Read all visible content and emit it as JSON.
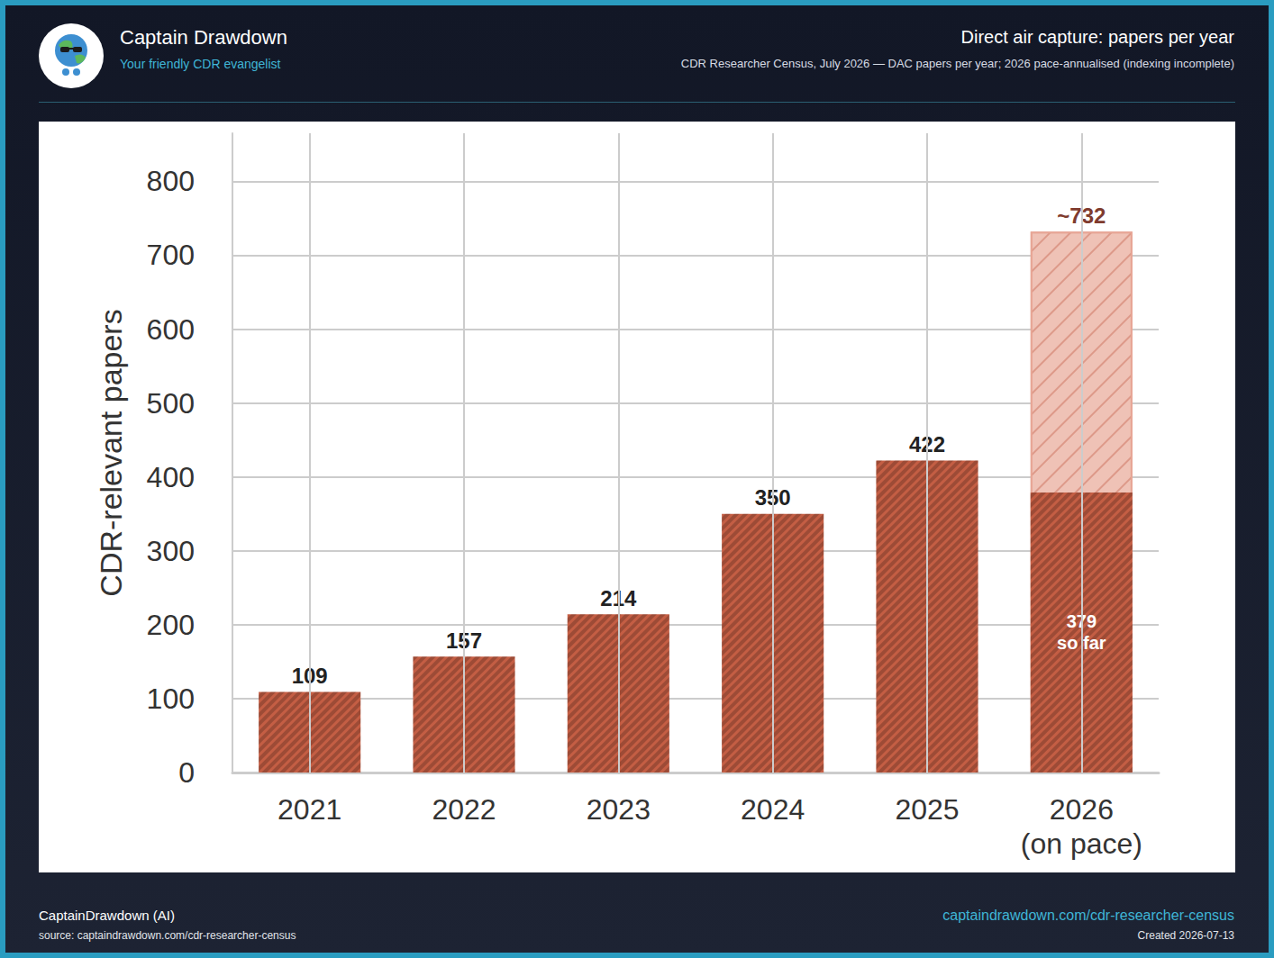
{
  "header": {
    "brand": "Captain Drawdown",
    "tagline": "Your friendly CDR evangelist"
  },
  "footer": {
    "author": "CaptainDrawdown (AI)",
    "source": "source: captaindrawdown.com/cdr-researcher-census",
    "link": "captaindrawdown.com/cdr-researcher-census",
    "created": "Created 2026-07-13"
  },
  "chart_data": {
    "type": "bar",
    "title": "Direct air capture: papers per year",
    "subtitle": "CDR Researcher Census, July 2026 — DAC papers per year; 2026 pace-annualised (indexing incomplete)",
    "y_label": "CDR-relevant papers",
    "categories": [
      "2021",
      "2022",
      "2023",
      "2024",
      "2025",
      "2026\n(on pace)"
    ],
    "series": [
      {
        "values": [
          109,
          157,
          214,
          350,
          422,
          379
        ],
        "value_labels": [
          "109",
          "157",
          "214",
          "350",
          "422",
          "379\nso far"
        ],
        "color": "#c45e44"
      },
      {
        "values": [
          null,
          null,
          null,
          null,
          null,
          732
        ],
        "value_labels": [
          null,
          null,
          null,
          null,
          null,
          "~732"
        ],
        "color": "#efc2b6"
      }
    ],
    "ylim": [
      0,
      865
    ],
    "yticks": [
      0,
      100,
      200,
      300,
      400,
      500,
      600,
      700,
      800
    ],
    "grid": true,
    "data_labels": true
  }
}
